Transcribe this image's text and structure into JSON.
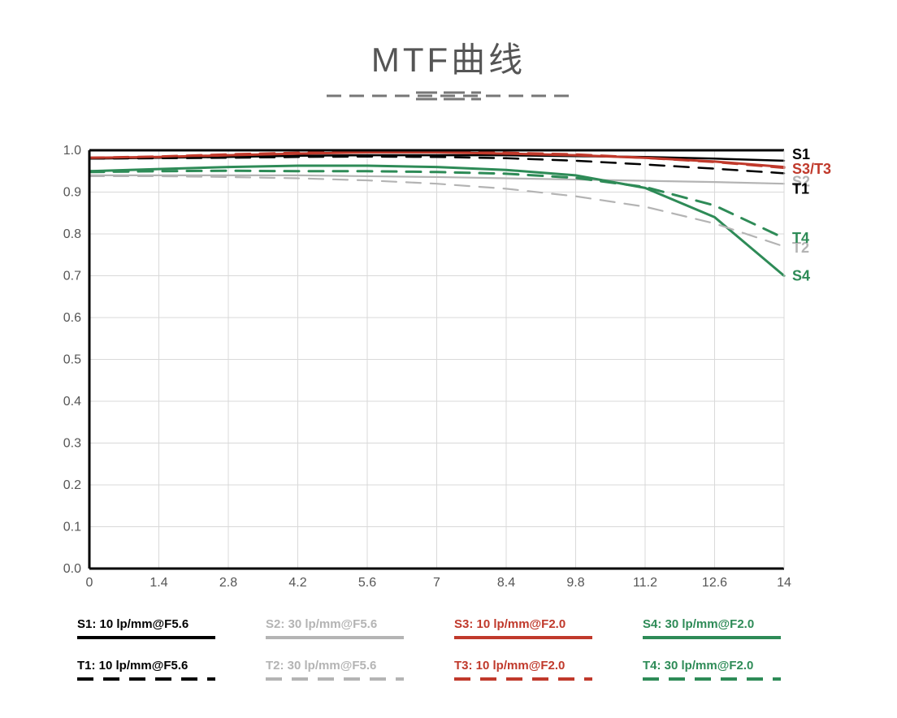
{
  "title": "MTF曲线",
  "chart": {
    "type": "line",
    "background_color": "#ffffff",
    "grid_color": "#d9d9d9",
    "axis_color": "#000000",
    "axis_width": 3,
    "xlim": [
      0,
      14
    ],
    "ylim": [
      0.0,
      1.0
    ],
    "xticks": [
      0,
      1.4,
      2.8,
      4.2,
      5.6,
      7,
      8.4,
      9.8,
      11.2,
      12.6,
      14
    ],
    "xtick_labels": [
      "0",
      "1.4",
      "2.8",
      "4.2",
      "5.6",
      "7",
      "8.4",
      "9.8",
      "11.2",
      "12.6",
      "14"
    ],
    "yticks": [
      0.0,
      0.1,
      0.2,
      0.3,
      0.4,
      0.5,
      0.6,
      0.7,
      0.8,
      0.9,
      1.0
    ],
    "ytick_labels": [
      "0.0",
      "0.1",
      "0.2",
      "0.3",
      "0.4",
      "0.5",
      "0.6",
      "0.7",
      "0.8",
      "0.9",
      "1.0"
    ],
    "tick_fontsize": 16,
    "end_label_fontsize": 18,
    "series": [
      {
        "id": "S1",
        "end_label": "S1",
        "color": "#000000",
        "dash": "solid",
        "width": 2.5,
        "end_label_y": 0.99,
        "x": [
          0,
          1.4,
          2.8,
          4.2,
          5.6,
          7,
          8.4,
          9.8,
          11.2,
          12.6,
          14
        ],
        "y": [
          0.98,
          0.982,
          0.984,
          0.987,
          0.988,
          0.988,
          0.988,
          0.986,
          0.984,
          0.98,
          0.975
        ]
      },
      {
        "id": "S2",
        "end_label": "S2",
        "color": "#b4b4b4",
        "dash": "solid",
        "width": 2.2,
        "end_label_y": 0.925,
        "x": [
          0,
          1.4,
          2.8,
          4.2,
          5.6,
          7,
          8.4,
          9.8,
          11.2,
          12.6,
          14
        ],
        "y": [
          0.94,
          0.94,
          0.94,
          0.94,
          0.938,
          0.936,
          0.933,
          0.93,
          0.927,
          0.924,
          0.92
        ]
      },
      {
        "id": "S3",
        "end_label": "S3/T3",
        "color": "#c0392b",
        "dash": "solid",
        "width": 3,
        "end_label_y": 0.955,
        "x": [
          0,
          1.4,
          2.8,
          4.2,
          5.6,
          7,
          8.4,
          9.8,
          11.2,
          12.6,
          14
        ],
        "y": [
          0.982,
          0.984,
          0.988,
          0.992,
          0.995,
          0.995,
          0.992,
          0.988,
          0.982,
          0.973,
          0.96
        ]
      },
      {
        "id": "S4",
        "end_label": "S4",
        "color": "#2e8b57",
        "dash": "solid",
        "width": 3,
        "end_label_y": 0.7,
        "x": [
          0,
          1.4,
          2.8,
          4.2,
          5.6,
          7,
          8.4,
          9.8,
          11.2,
          12.6,
          14
        ],
        "y": [
          0.95,
          0.955,
          0.96,
          0.963,
          0.963,
          0.96,
          0.953,
          0.94,
          0.91,
          0.84,
          0.7
        ]
      },
      {
        "id": "T1",
        "end_label": "T1",
        "color": "#000000",
        "dash": "dashed",
        "width": 2.5,
        "end_label_y": 0.908,
        "x": [
          0,
          1.4,
          2.8,
          4.2,
          5.6,
          7,
          8.4,
          9.8,
          11.2,
          12.6,
          14
        ],
        "y": [
          0.98,
          0.981,
          0.982,
          0.984,
          0.985,
          0.984,
          0.981,
          0.975,
          0.966,
          0.956,
          0.945
        ]
      },
      {
        "id": "T2",
        "end_label": "T2",
        "color": "#b4b4b4",
        "dash": "dashed",
        "width": 2.2,
        "end_label_y": 0.767,
        "x": [
          0,
          1.4,
          2.8,
          4.2,
          5.6,
          7,
          8.4,
          9.8,
          11.2,
          12.6,
          14
        ],
        "y": [
          0.938,
          0.938,
          0.936,
          0.933,
          0.928,
          0.92,
          0.908,
          0.89,
          0.865,
          0.825,
          0.77
        ]
      },
      {
        "id": "T3",
        "end_label": "",
        "color": "#c0392b",
        "dash": "dashed",
        "width": 3,
        "end_label_y": null,
        "x": [
          0,
          1.4,
          2.8,
          4.2,
          5.6,
          7,
          8.4,
          9.8,
          11.2,
          12.6,
          14
        ],
        "y": [
          0.982,
          0.985,
          0.99,
          0.994,
          0.996,
          0.996,
          0.994,
          0.99,
          0.982,
          0.972,
          0.958
        ]
      },
      {
        "id": "T4",
        "end_label": "T4",
        "color": "#2e8b57",
        "dash": "dashed",
        "width": 3,
        "end_label_y": 0.79,
        "x": [
          0,
          1.4,
          2.8,
          4.2,
          5.6,
          7,
          8.4,
          9.8,
          11.2,
          12.6,
          14
        ],
        "y": [
          0.948,
          0.95,
          0.951,
          0.95,
          0.95,
          0.948,
          0.944,
          0.934,
          0.912,
          0.868,
          0.79
        ]
      }
    ]
  },
  "legend": {
    "rows": [
      [
        {
          "label": "S1: 10 lp/mm@F5.6",
          "color": "#000000",
          "dash": "solid"
        },
        {
          "label": "S2: 30 lp/mm@F5.6",
          "color": "#b4b4b4",
          "dash": "solid"
        },
        {
          "label": "S3: 10 lp/mm@F2.0",
          "color": "#c0392b",
          "dash": "solid"
        },
        {
          "label": "S4: 30 lp/mm@F2.0",
          "color": "#2e8b57",
          "dash": "solid"
        }
      ],
      [
        {
          "label": "T1: 10 lp/mm@F5.6",
          "color": "#000000",
          "dash": "dashed"
        },
        {
          "label": "T2: 30 lp/mm@F5.6",
          "color": "#b4b4b4",
          "dash": "dashed"
        },
        {
          "label": "T3: 10 lp/mm@F2.0",
          "color": "#c0392b",
          "dash": "dashed"
        },
        {
          "label": "T4: 30 lp/mm@F2.0",
          "color": "#2e8b57",
          "dash": "dashed"
        }
      ]
    ],
    "label_fontsize": 15,
    "swatch_width": 170,
    "swatch_height": 4
  },
  "title_decoration": {
    "color": "#777777",
    "outer_dash": "18 10",
    "inner_dash": "26 8",
    "inner2_dash": "26 8"
  }
}
